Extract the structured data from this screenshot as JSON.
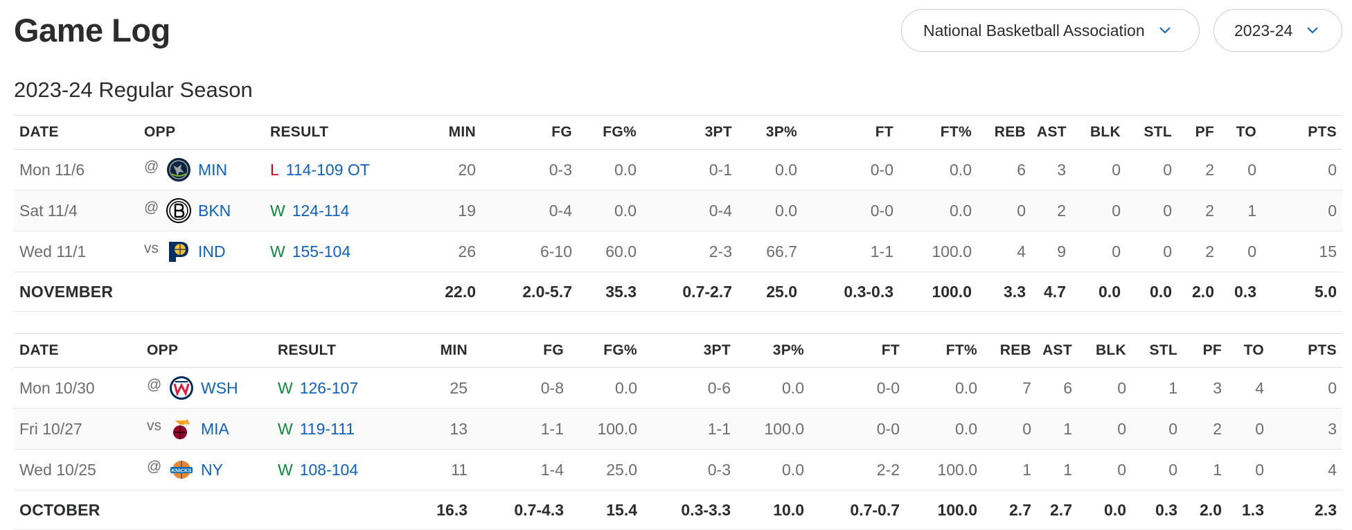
{
  "header": {
    "title": "Game Log",
    "league_select": {
      "value": "National Basketball Association"
    },
    "season_select": {
      "value": "2023-24"
    }
  },
  "season_title": "2023-24 Regular Season",
  "columns": [
    "DATE",
    "OPP",
    "RESULT",
    "MIN",
    "FG",
    "FG%",
    "3PT",
    "3P%",
    "FT",
    "FT%",
    "REB",
    "AST",
    "BLK",
    "STL",
    "PF",
    "TO",
    "PTS"
  ],
  "months": [
    {
      "games": [
        {
          "date": "Mon 11/6",
          "ha": "@",
          "team": "MIN",
          "logo": "timberwolves-logo",
          "wl": "L",
          "score": "114-109 OT",
          "min": "20",
          "fg": "0-3",
          "fgp": "0.0",
          "tpt": "0-1",
          "tpp": "0.0",
          "ft": "0-0",
          "ftp": "0.0",
          "reb": "6",
          "ast": "3",
          "blk": "0",
          "stl": "0",
          "pf": "2",
          "to": "0",
          "pts": "0"
        },
        {
          "date": "Sat 11/4",
          "ha": "@",
          "team": "BKN",
          "logo": "nets-logo",
          "wl": "W",
          "score": "124-114",
          "min": "19",
          "fg": "0-4",
          "fgp": "0.0",
          "tpt": "0-4",
          "tpp": "0.0",
          "ft": "0-0",
          "ftp": "0.0",
          "reb": "0",
          "ast": "2",
          "blk": "0",
          "stl": "0",
          "pf": "2",
          "to": "1",
          "pts": "0"
        },
        {
          "date": "Wed 11/1",
          "ha": "vs",
          "team": "IND",
          "logo": "pacers-logo",
          "wl": "W",
          "score": "155-104",
          "min": "26",
          "fg": "6-10",
          "fgp": "60.0",
          "tpt": "2-3",
          "tpp": "66.7",
          "ft": "1-1",
          "ftp": "100.0",
          "reb": "4",
          "ast": "9",
          "blk": "0",
          "stl": "0",
          "pf": "2",
          "to": "0",
          "pts": "15"
        }
      ],
      "totals": {
        "label": "NOVEMBER",
        "min": "22.0",
        "fg": "2.0-5.7",
        "fgp": "35.3",
        "tpt": "0.7-2.7",
        "tpp": "25.0",
        "ft": "0.3-0.3",
        "ftp": "100.0",
        "reb": "3.3",
        "ast": "4.7",
        "blk": "0.0",
        "stl": "0.0",
        "pf": "2.0",
        "to": "0.3",
        "pts": "5.0"
      }
    },
    {
      "games": [
        {
          "date": "Mon 10/30",
          "ha": "@",
          "team": "WSH",
          "logo": "wizards-logo",
          "wl": "W",
          "score": "126-107",
          "min": "25",
          "fg": "0-8",
          "fgp": "0.0",
          "tpt": "0-6",
          "tpp": "0.0",
          "ft": "0-0",
          "ftp": "0.0",
          "reb": "7",
          "ast": "6",
          "blk": "0",
          "stl": "1",
          "pf": "3",
          "to": "4",
          "pts": "0"
        },
        {
          "date": "Fri 10/27",
          "ha": "vs",
          "team": "MIA",
          "logo": "heat-logo",
          "wl": "W",
          "score": "119-111",
          "min": "13",
          "fg": "1-1",
          "fgp": "100.0",
          "tpt": "1-1",
          "tpp": "100.0",
          "ft": "0-0",
          "ftp": "0.0",
          "reb": "0",
          "ast": "1",
          "blk": "0",
          "stl": "0",
          "pf": "2",
          "to": "0",
          "pts": "3"
        },
        {
          "date": "Wed 10/25",
          "ha": "@",
          "team": "NY",
          "logo": "knicks-logo",
          "wl": "W",
          "score": "108-104",
          "min": "11",
          "fg": "1-4",
          "fgp": "25.0",
          "tpt": "0-3",
          "tpp": "0.0",
          "ft": "2-2",
          "ftp": "100.0",
          "reb": "1",
          "ast": "1",
          "blk": "0",
          "stl": "0",
          "pf": "1",
          "to": "0",
          "pts": "4"
        }
      ],
      "totals": {
        "label": "OCTOBER",
        "min": "16.3",
        "fg": "0.7-4.3",
        "fgp": "15.4",
        "tpt": "0.3-3.3",
        "tpp": "10.0",
        "ft": "0.7-0.7",
        "ftp": "100.0",
        "reb": "2.7",
        "ast": "2.7",
        "blk": "0.0",
        "stl": "0.3",
        "pf": "2.0",
        "to": "1.3",
        "pts": "2.3"
      }
    }
  ],
  "colors": {
    "win": "#0a8a3a",
    "loss": "#d0021b",
    "link": "#0d62c0"
  }
}
